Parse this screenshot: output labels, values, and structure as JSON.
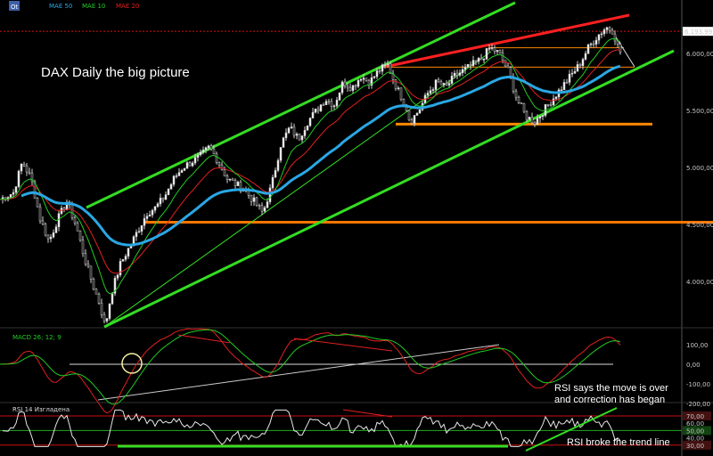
{
  "chart_data": [
    {
      "type": "line",
      "panel": "price",
      "title": "DAX Daily the big picture",
      "series": [
        {
          "name": "MAE 50",
          "color": "#2aa7e4"
        },
        {
          "name": "MAE 10",
          "color": "#22cc22"
        },
        {
          "name": "MAE 20",
          "color": "#e22020"
        }
      ],
      "price_path": [
        [
          0,
          4720
        ],
        [
          15,
          4780
        ],
        [
          25,
          5050
        ],
        [
          35,
          4900
        ],
        [
          45,
          4550
        ],
        [
          55,
          4350
        ],
        [
          65,
          4550
        ],
        [
          75,
          4700
        ],
        [
          85,
          4500
        ],
        [
          95,
          4200
        ],
        [
          105,
          3950
        ],
        [
          112,
          3800
        ],
        [
          118,
          3600
        ],
        [
          125,
          3900
        ],
        [
          135,
          4150
        ],
        [
          145,
          4300
        ],
        [
          155,
          4450
        ],
        [
          165,
          4600
        ],
        [
          175,
          4650
        ],
        [
          185,
          4750
        ],
        [
          195,
          4900
        ],
        [
          205,
          5000
        ],
        [
          215,
          5050
        ],
        [
          225,
          5100
        ],
        [
          235,
          5180
        ],
        [
          245,
          5050
        ],
        [
          255,
          4900
        ],
        [
          265,
          4850
        ],
        [
          275,
          4800
        ],
        [
          285,
          4700
        ],
        [
          295,
          4600
        ],
        [
          305,
          4850
        ],
        [
          315,
          5200
        ],
        [
          325,
          5350
        ],
        [
          335,
          5250
        ],
        [
          345,
          5400
        ],
        [
          355,
          5500
        ],
        [
          365,
          5600
        ],
        [
          375,
          5550
        ],
        [
          385,
          5750
        ],
        [
          395,
          5700
        ],
        [
          405,
          5800
        ],
        [
          415,
          5750
        ],
        [
          425,
          5850
        ],
        [
          435,
          5900
        ],
        [
          445,
          5700
        ],
        [
          455,
          5550
        ],
        [
          460,
          5400
        ],
        [
          470,
          5500
        ],
        [
          480,
          5650
        ],
        [
          490,
          5750
        ],
        [
          500,
          5700
        ],
        [
          510,
          5800
        ],
        [
          520,
          5850
        ],
        [
          530,
          5900
        ],
        [
          540,
          5950
        ],
        [
          550,
          6050
        ],
        [
          560,
          6000
        ],
        [
          570,
          5850
        ],
        [
          580,
          5600
        ],
        [
          590,
          5450
        ],
        [
          600,
          5400
        ],
        [
          610,
          5500
        ],
        [
          620,
          5600
        ],
        [
          630,
          5700
        ],
        [
          640,
          5800
        ],
        [
          650,
          5900
        ],
        [
          660,
          6050
        ],
        [
          670,
          6150
        ],
        [
          680,
          6230
        ],
        [
          688,
          6200
        ],
        [
          692,
          6080
        ],
        [
          697,
          6000
        ]
      ],
      "horizontal_levels": [
        6193.99,
        6050,
        5880,
        5380,
        4520
      ],
      "current_price_label": "6.193,99",
      "y_ticks": [
        "6.000,00",
        "5.500,00",
        "5.000,00",
        "4.500,00",
        "4.000,00"
      ],
      "ylim": [
        3500,
        6350
      ]
    },
    {
      "type": "line",
      "panel": "macd",
      "title": "MACD 26; 12; 9",
      "y_ticks": [
        "100,00",
        "0,00",
        "-100,00",
        "-200,00"
      ],
      "ylim": [
        -230,
        160
      ]
    },
    {
      "type": "line",
      "panel": "rsi",
      "title": "RSI 14 Изгладена",
      "y_ticks": [
        "70,00",
        "60,00",
        "50,00",
        "40,00",
        "30,00"
      ],
      "ylim": [
        25,
        80
      ]
    }
  ],
  "annotations": {
    "title": "DAX Daily the big picture",
    "rsi_note_1": "RSI says the move is over",
    "rsi_note_2": "and correction has began",
    "rsi_note_3": "RSI broke the trend line"
  },
  "toolbar": {
    "badge": "Ot"
  },
  "legend": {
    "mae50": "MAE 50",
    "mae10": "MAE 10",
    "mae20": "MAE 20",
    "macd": "MACD 26; 12; 9",
    "rsi": "RSI 14 Изгладена"
  },
  "colors": {
    "ma50": "#2aa7e4",
    "ma10": "#22cc22",
    "ma20": "#e22020",
    "trend": "#33dd22",
    "support": "#ff8800",
    "resistance": "#ff2020"
  }
}
